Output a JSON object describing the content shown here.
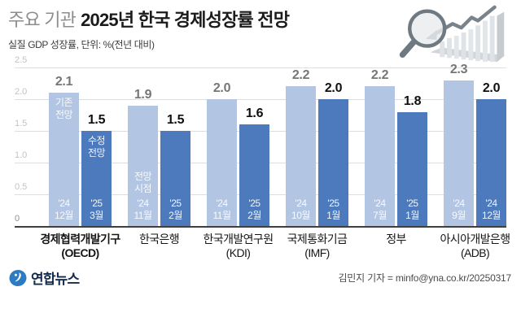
{
  "header": {
    "title_prefix": "주요 기관",
    "title_main": "2025년 한국 경제성장률 전망",
    "subtitle": "실질 GDP 성장률, 단위: %(전년 대비)"
  },
  "chart_data": {
    "type": "bar",
    "title": "주요 기관 2025년 한국 경제성장률 전망",
    "unit": "%(전년 대비)",
    "ylim": [
      0,
      2.5
    ],
    "yticks": [
      "0",
      "0.5",
      "1.0",
      "1.5",
      "2.0",
      "2.5"
    ],
    "grid": true,
    "legend_labels": {
      "old_series": "기존 전망",
      "new_series": "수정 전망",
      "timing": "전망 시점"
    },
    "series": [
      {
        "name": "기존 전망",
        "values": [
          2.1,
          1.9,
          2.0,
          2.2,
          2.2,
          2.3
        ]
      },
      {
        "name": "수정 전망",
        "values": [
          1.5,
          1.5,
          1.6,
          2.0,
          1.8,
          2.0
        ]
      }
    ],
    "groups": [
      {
        "institution": "경제협력개발기구",
        "abbr": "(OECD)",
        "emphasis": true,
        "old": {
          "value": "2.1",
          "date": "'24 12월"
        },
        "new": {
          "value": "1.5",
          "date": "'25 3월"
        }
      },
      {
        "institution": "한국은행",
        "abbr": "",
        "emphasis": false,
        "old": {
          "value": "1.9",
          "date": "'24 11월"
        },
        "new": {
          "value": "1.5",
          "date": "'25 2월"
        }
      },
      {
        "institution": "한국개발연구원",
        "abbr": "(KDI)",
        "emphasis": false,
        "old": {
          "value": "2.0",
          "date": "'24 11월"
        },
        "new": {
          "value": "1.6",
          "date": "'25 2월"
        }
      },
      {
        "institution": "국제통화기금",
        "abbr": "(IMF)",
        "emphasis": false,
        "old": {
          "value": "2.2",
          "date": "'24 10월"
        },
        "new": {
          "value": "2.0",
          "date": "'25 1월"
        }
      },
      {
        "institution": "정부",
        "abbr": "",
        "emphasis": false,
        "old": {
          "value": "2.2",
          "date": "'24 7월"
        },
        "new": {
          "value": "1.8",
          "date": "'25 1월"
        }
      },
      {
        "institution": "아시아개발은행",
        "abbr": "(ADB)",
        "emphasis": false,
        "old": {
          "value": "2.3",
          "date": "'24 9월"
        },
        "new": {
          "value": "2.0",
          "date": "'24 12월"
        }
      }
    ],
    "colors": {
      "old_bar": "#b2c5e2",
      "new_bar": "#4d7abc",
      "old_value_text": "#767676",
      "new_value_text": "#101010"
    }
  },
  "illustration": {
    "name": "magnifier-over-trend-chart"
  },
  "footer": {
    "logo_text": "연합뉴스",
    "logo_color": "#2d7cc1",
    "credit": "김민지 기자 = minfo@yna.co.kr/20250317"
  }
}
